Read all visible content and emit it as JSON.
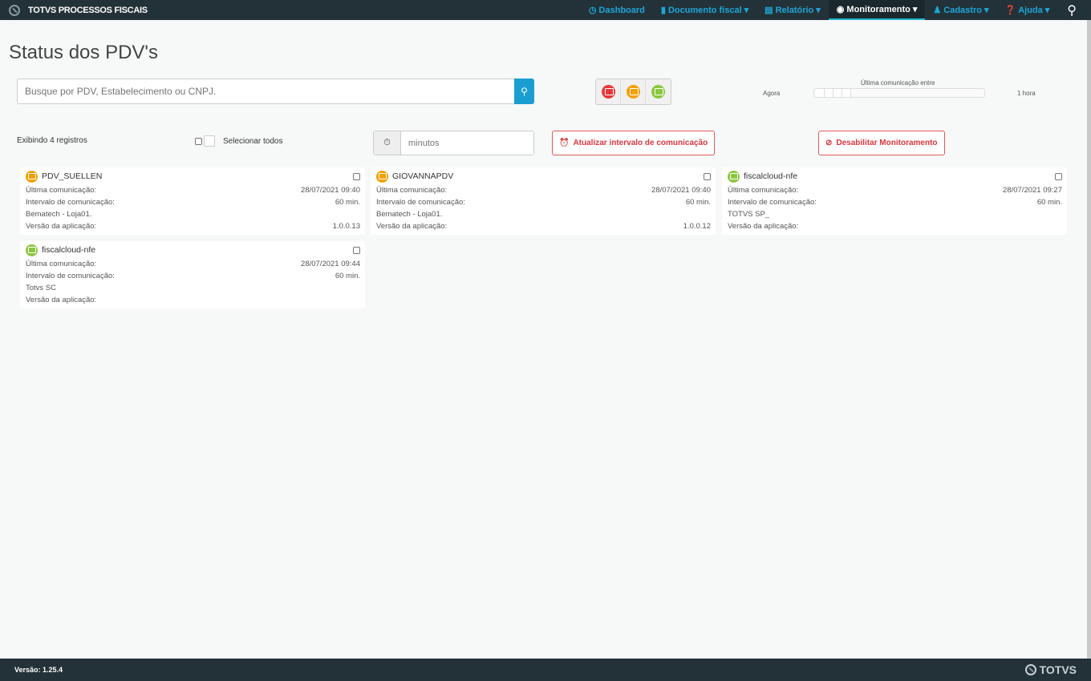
{
  "app": {
    "title": "TOTVS PROCESSOS FISCAIS"
  },
  "nav": [
    {
      "label": "Dashboard",
      "icon": "clock-icon",
      "caret": ""
    },
    {
      "label": "Documento fiscal",
      "icon": "file-icon",
      "caret": "▾"
    },
    {
      "label": "Relatório",
      "icon": "report-icon",
      "caret": "▾"
    },
    {
      "label": "Monitoramento",
      "icon": "eye-icon",
      "caret": "▾"
    },
    {
      "label": "Cadastro",
      "icon": "user-plus-icon",
      "caret": "▾"
    },
    {
      "label": "Ajuda",
      "icon": "question-icon",
      "caret": "▾"
    }
  ],
  "page": {
    "title": "Status dos PDV's"
  },
  "search": {
    "placeholder": "Busque por PDV, Estabelecimento ou CNPJ.",
    "value": ""
  },
  "status_colors": {
    "red": "#e8373d",
    "orange": "#f5a000",
    "green": "#8cc63f"
  },
  "range": {
    "label": "Última comunicação entre",
    "min": "Agora",
    "max": "1 hora"
  },
  "toolbar": {
    "count": "Exibindo 4 registros",
    "select_all": "Selecionar todos",
    "minutes_placeholder": "minutos",
    "update_btn": "Atualizar intervalo de comunicação",
    "disable_btn": "Desabilitar Monitoramento"
  },
  "labels": {
    "last": "Última comunicação:",
    "interval": "Intervalo de comunicação:",
    "version": "Versão da aplicação:"
  },
  "cards": [
    {
      "name": "PDV_SUELLEN",
      "status": "orange",
      "last": "28/07/2021 09:40",
      "interval": "60 min.",
      "store": "Bematech - Loja01.",
      "version": "1.0.0.13"
    },
    {
      "name": "GIOVANNAPDV",
      "status": "orange",
      "last": "28/07/2021 09:40",
      "interval": "60 min.",
      "store": "Bematech - Loja01.",
      "version": "1.0.0.12"
    },
    {
      "name": "fiscalcloud-nfe",
      "status": "green",
      "last": "28/07/2021 09:27",
      "interval": "60 min.",
      "store": "TOTVS SP_",
      "version": ""
    },
    {
      "name": "fiscalcloud-nfe",
      "status": "green",
      "last": "28/07/2021 09:44",
      "interval": "60 min.",
      "store": "Totvs SC",
      "version": ""
    }
  ],
  "footer": {
    "version": "Versão: 1.25.4",
    "brand": "TOTVS"
  }
}
